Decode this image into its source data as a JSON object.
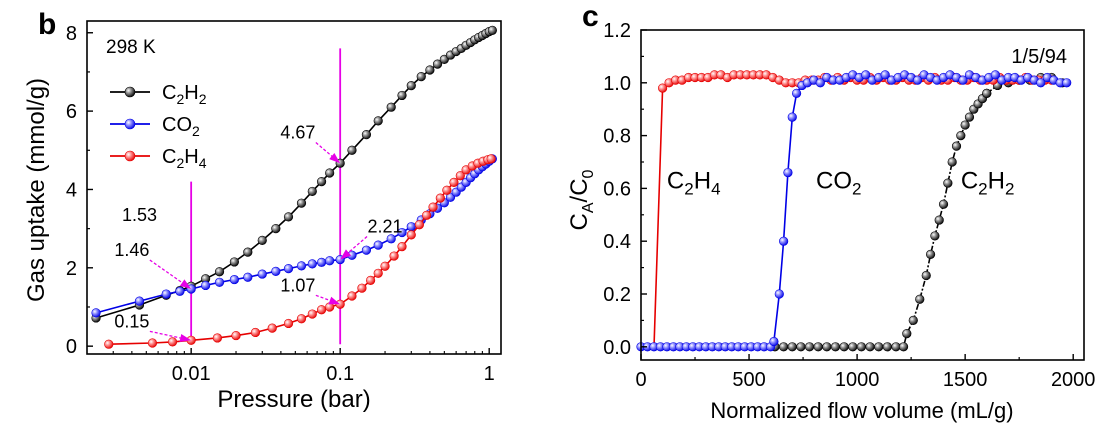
{
  "chart_data": [
    {
      "panel_label": "b",
      "type": "line",
      "x_scale": "log",
      "annotation_temp": "298 K",
      "xlabel": "Pressure (bar)",
      "ylabel": "Gas uptake (mmol/g)",
      "xlim": [
        0.002,
        1.2
      ],
      "ylim": [
        -0.2,
        8.3
      ],
      "x_ticks": [
        {
          "v": 0.01,
          "label": "0.01"
        },
        {
          "v": 0.1,
          "label": "0.1"
        },
        {
          "v": 1,
          "label": "1"
        }
      ],
      "y_ticks": [
        {
          "v": 0,
          "label": "0"
        },
        {
          "v": 2,
          "label": "2"
        },
        {
          "v": 4,
          "label": "4"
        },
        {
          "v": 6,
          "label": "6"
        },
        {
          "v": 8,
          "label": "8"
        }
      ],
      "vlines": [
        0.01,
        0.1
      ],
      "vline_color": "#e600e6",
      "legend_location": "upper-left",
      "series": [
        {
          "name": "C2H2",
          "legend_main": "C",
          "legend_sub1": "2",
          "legend_mid": "H",
          "legend_sub2": "2",
          "color": "#000000",
          "highlight": "#9a9a9a",
          "x": [
            0.0023,
            0.0045,
            0.0068,
            0.0084,
            0.01,
            0.0125,
            0.0155,
            0.0195,
            0.024,
            0.03,
            0.037,
            0.045,
            0.055,
            0.065,
            0.075,
            0.085,
            0.1,
            0.12,
            0.15,
            0.18,
            0.22,
            0.26,
            0.3,
            0.35,
            0.4,
            0.45,
            0.5,
            0.55,
            0.6,
            0.65,
            0.7,
            0.75,
            0.8,
            0.85,
            0.9,
            0.95,
            1.0,
            1.05
          ],
          "y": [
            0.72,
            1.05,
            1.3,
            1.42,
            1.53,
            1.72,
            1.9,
            2.15,
            2.4,
            2.7,
            3.0,
            3.3,
            3.65,
            3.95,
            4.2,
            4.42,
            4.67,
            5.0,
            5.4,
            5.75,
            6.1,
            6.4,
            6.65,
            6.88,
            7.05,
            7.2,
            7.32,
            7.43,
            7.52,
            7.6,
            7.68,
            7.75,
            7.82,
            7.88,
            7.93,
            7.98,
            8.03,
            8.06
          ]
        },
        {
          "name": "CO2",
          "legend_main": "CO",
          "legend_sub1": "2",
          "legend_mid": "",
          "legend_sub2": "",
          "color": "#0000e6",
          "highlight": "#9a9aff",
          "x": [
            0.0023,
            0.0045,
            0.0068,
            0.0084,
            0.01,
            0.0125,
            0.0155,
            0.0195,
            0.024,
            0.03,
            0.037,
            0.045,
            0.055,
            0.065,
            0.075,
            0.085,
            0.1,
            0.12,
            0.15,
            0.18,
            0.22,
            0.26,
            0.3,
            0.35,
            0.4,
            0.45,
            0.5,
            0.55,
            0.6,
            0.65,
            0.7,
            0.75,
            0.8,
            0.85,
            0.9,
            0.95,
            1.0,
            1.05
          ],
          "y": [
            0.85,
            1.15,
            1.33,
            1.4,
            1.46,
            1.55,
            1.63,
            1.7,
            1.76,
            1.84,
            1.91,
            1.98,
            2.05,
            2.1,
            2.14,
            2.18,
            2.21,
            2.32,
            2.45,
            2.58,
            2.74,
            2.9,
            3.05,
            3.22,
            3.38,
            3.52,
            3.66,
            3.8,
            3.93,
            4.06,
            4.18,
            4.3,
            4.4,
            4.5,
            4.58,
            4.65,
            4.72,
            4.78
          ]
        },
        {
          "name": "C2H4",
          "legend_main": "C",
          "legend_sub1": "2",
          "legend_mid": "H",
          "legend_sub2": "4",
          "color": "#e60000",
          "highlight": "#ff9a9a",
          "x": [
            0.0028,
            0.0055,
            0.0075,
            0.01,
            0.015,
            0.02,
            0.027,
            0.035,
            0.045,
            0.055,
            0.065,
            0.075,
            0.085,
            0.1,
            0.12,
            0.14,
            0.16,
            0.18,
            0.2,
            0.23,
            0.26,
            0.3,
            0.34,
            0.38,
            0.42,
            0.47,
            0.52,
            0.58,
            0.64,
            0.7,
            0.77,
            0.84,
            0.91,
            0.98,
            1.03
          ],
          "y": [
            0.05,
            0.08,
            0.11,
            0.15,
            0.21,
            0.27,
            0.35,
            0.46,
            0.58,
            0.7,
            0.82,
            0.93,
            1.0,
            1.07,
            1.28,
            1.48,
            1.68,
            1.86,
            2.04,
            2.3,
            2.54,
            2.84,
            3.1,
            3.34,
            3.55,
            3.78,
            3.98,
            4.18,
            4.35,
            4.5,
            4.6,
            4.67,
            4.72,
            4.76,
            4.78
          ]
        }
      ],
      "annotations": [
        {
          "text": "4.67",
          "color": "#000000",
          "x": 0.1,
          "y": 4.67,
          "label_x": 0.052,
          "label_y": 5.3,
          "arrow": true
        },
        {
          "text": "1.53",
          "color": "#000000",
          "x": 0.01,
          "y": 1.53,
          "label_x": 0.0045,
          "label_y": 3.2,
          "arrow": false
        },
        {
          "text": "1.46",
          "color": "#0000e6",
          "x": 0.01,
          "y": 1.46,
          "label_x": 0.004,
          "label_y": 2.3,
          "arrow": true
        },
        {
          "text": "2.21",
          "color": "#0000e6",
          "x": 0.1,
          "y": 2.21,
          "label_x": 0.2,
          "label_y": 2.9,
          "arrow": true
        },
        {
          "text": "1.07",
          "color": "#e60000",
          "x": 0.1,
          "y": 1.07,
          "label_x": 0.052,
          "label_y": 1.4,
          "arrow": true
        },
        {
          "text": "0.15",
          "color": "#e60000",
          "x": 0.01,
          "y": 0.15,
          "label_x": 0.004,
          "label_y": 0.48,
          "arrow": true
        }
      ]
    },
    {
      "panel_label": "c",
      "type": "line",
      "annotation_ratio": "1/5/94",
      "xlabel": "Normalized flow volume (mL/g)",
      "ylabel_main": "C",
      "ylabel_sub1": "A",
      "ylabel_mid": "/C",
      "ylabel_sub2": "0",
      "xlim": [
        0,
        2050
      ],
      "ylim": [
        -0.05,
        1.2
      ],
      "x_ticks": [
        {
          "v": 0,
          "label": "0"
        },
        {
          "v": 500,
          "label": "500"
        },
        {
          "v": 1000,
          "label": "1000"
        },
        {
          "v": 1500,
          "label": "1500"
        },
        {
          "v": 2000,
          "label": "2000"
        }
      ],
      "y_ticks": [
        {
          "v": 0,
          "label": "0.0"
        },
        {
          "v": 0.2,
          "label": "0.2"
        },
        {
          "v": 0.4,
          "label": "0.4"
        },
        {
          "v": 0.6,
          "label": "0.6"
        },
        {
          "v": 0.8,
          "label": "0.8"
        },
        {
          "v": 1.0,
          "label": "1.0"
        },
        {
          "v": 1.2,
          "label": "1.2"
        }
      ],
      "series": [
        {
          "name": "C2H2",
          "label_main": "C",
          "label_sub1": "2",
          "label_mid": "H",
          "label_sub2": "2",
          "label_x": 1480,
          "label_y": 0.6,
          "color": "#000000",
          "highlight": "#9a9a9a",
          "x": [
            620,
            660,
            700,
            740,
            780,
            820,
            860,
            900,
            940,
            980,
            1020,
            1060,
            1100,
            1140,
            1180,
            1215,
            1230,
            1260,
            1290,
            1320,
            1340,
            1360,
            1380,
            1400,
            1420,
            1440,
            1460,
            1480,
            1500,
            1520,
            1540,
            1560,
            1580,
            1600
          ],
          "y": [
            0,
            0,
            0,
            0,
            0,
            0,
            0,
            0,
            0,
            0,
            0,
            0,
            0,
            0,
            0,
            0,
            0.05,
            0.1,
            0.18,
            0.27,
            0.35,
            0.42,
            0.48,
            0.54,
            0.62,
            0.7,
            0.76,
            0.8,
            0.84,
            0.87,
            0.9,
            0.92,
            0.94,
            0.96
          ]
        },
        {
          "name": "C2H2_tail",
          "label_main": "",
          "color": "#000000",
          "highlight": "#9a9a9a",
          "hide_line": false,
          "x": [
            1600,
            1650,
            1700,
            1750,
            1800,
            1850,
            1900,
            1950
          ],
          "y": [
            0.96,
            0.99,
            1.0,
            1.01,
            1.01,
            1.02,
            1.02,
            1.0
          ]
        },
        {
          "name": "CO2",
          "label_main": "CO",
          "label_sub1": "2",
          "label_mid": "",
          "label_sub2": "",
          "label_x": 810,
          "label_y": 0.6,
          "color": "#0000e6",
          "highlight": "#9a9aff",
          "x": [
            0,
            30,
            60,
            90,
            120,
            150,
            180,
            210,
            240,
            270,
            300,
            330,
            360,
            390,
            420,
            450,
            480,
            510,
            540,
            570,
            600,
            615,
            640,
            660,
            680,
            700,
            720,
            745,
            770,
            800,
            830,
            860,
            890,
            920,
            950,
            980,
            1010,
            1040,
            1070,
            1100,
            1130,
            1160,
            1190,
            1220,
            1250,
            1280,
            1310,
            1340,
            1370,
            1400,
            1430,
            1460,
            1490,
            1520,
            1550,
            1580,
            1610,
            1640,
            1670,
            1700,
            1730,
            1760,
            1790,
            1820,
            1850,
            1880,
            1910,
            1940,
            1970
          ],
          "y": [
            0,
            0,
            0,
            0,
            0,
            0,
            0,
            0,
            0,
            0,
            0,
            0,
            0,
            0,
            0,
            0,
            0,
            0,
            0,
            0,
            0,
            0.02,
            0.2,
            0.4,
            0.66,
            0.87,
            0.96,
            0.99,
            1.0,
            1.01,
            1.0,
            1.02,
            1.01,
            1.01,
            1.02,
            1.03,
            1.02,
            1.03,
            1.01,
            1.02,
            1.03,
            1.01,
            1.02,
            1.03,
            1.02,
            1.01,
            1.03,
            1.02,
            1.01,
            1.02,
            1.03,
            1.02,
            1.01,
            1.03,
            1.02,
            1.01,
            1.02,
            1.03,
            1.01,
            1.02,
            1.02,
            1.01,
            1.02,
            1.01,
            1.0,
            1.02,
            1.01,
            1.0,
            1.0
          ]
        },
        {
          "name": "C2H4",
          "label_main": "C",
          "label_sub1": "2",
          "label_mid": "H",
          "label_sub2": "4",
          "label_x": 120,
          "label_y": 0.6,
          "color": "#e60000",
          "highlight": "#ff9a9a",
          "x": [
            60,
            100,
            130,
            160,
            190,
            220,
            250,
            280,
            310,
            340,
            370,
            400,
            430,
            460,
            490,
            520,
            550,
            580,
            610,
            640,
            670,
            700,
            730,
            760,
            790,
            820,
            850,
            880,
            910,
            940,
            970,
            1000,
            1030,
            1060,
            1090,
            1120,
            1150,
            1180,
            1210,
            1240,
            1270,
            1300,
            1330,
            1360,
            1390,
            1420,
            1450,
            1480,
            1510,
            1540,
            1570,
            1600,
            1630,
            1660,
            1690,
            1720,
            1750,
            1780,
            1810,
            1840,
            1870,
            1900
          ],
          "y": [
            0,
            0.98,
            1.0,
            1.01,
            1.01,
            1.02,
            1.02,
            1.02,
            1.02,
            1.03,
            1.03,
            1.02,
            1.03,
            1.03,
            1.03,
            1.03,
            1.03,
            1.03,
            1.02,
            1.01,
            1.0,
            1.0,
            1.0,
            1.01,
            1.01,
            1.01,
            1.02,
            1.01,
            1.02,
            1.01,
            1.02,
            1.01,
            1.01,
            1.02,
            1.01,
            1.02,
            1.01,
            1.01,
            1.02,
            1.01,
            1.01,
            1.02,
            1.01,
            1.02,
            1.01,
            1.01,
            1.02,
            1.01,
            1.01,
            1.02,
            1.01,
            1.01,
            1.01,
            1.02,
            1.01,
            1.01,
            1.01,
            1.02,
            1.01,
            1.01,
            1.01,
            1.01
          ]
        }
      ]
    }
  ]
}
